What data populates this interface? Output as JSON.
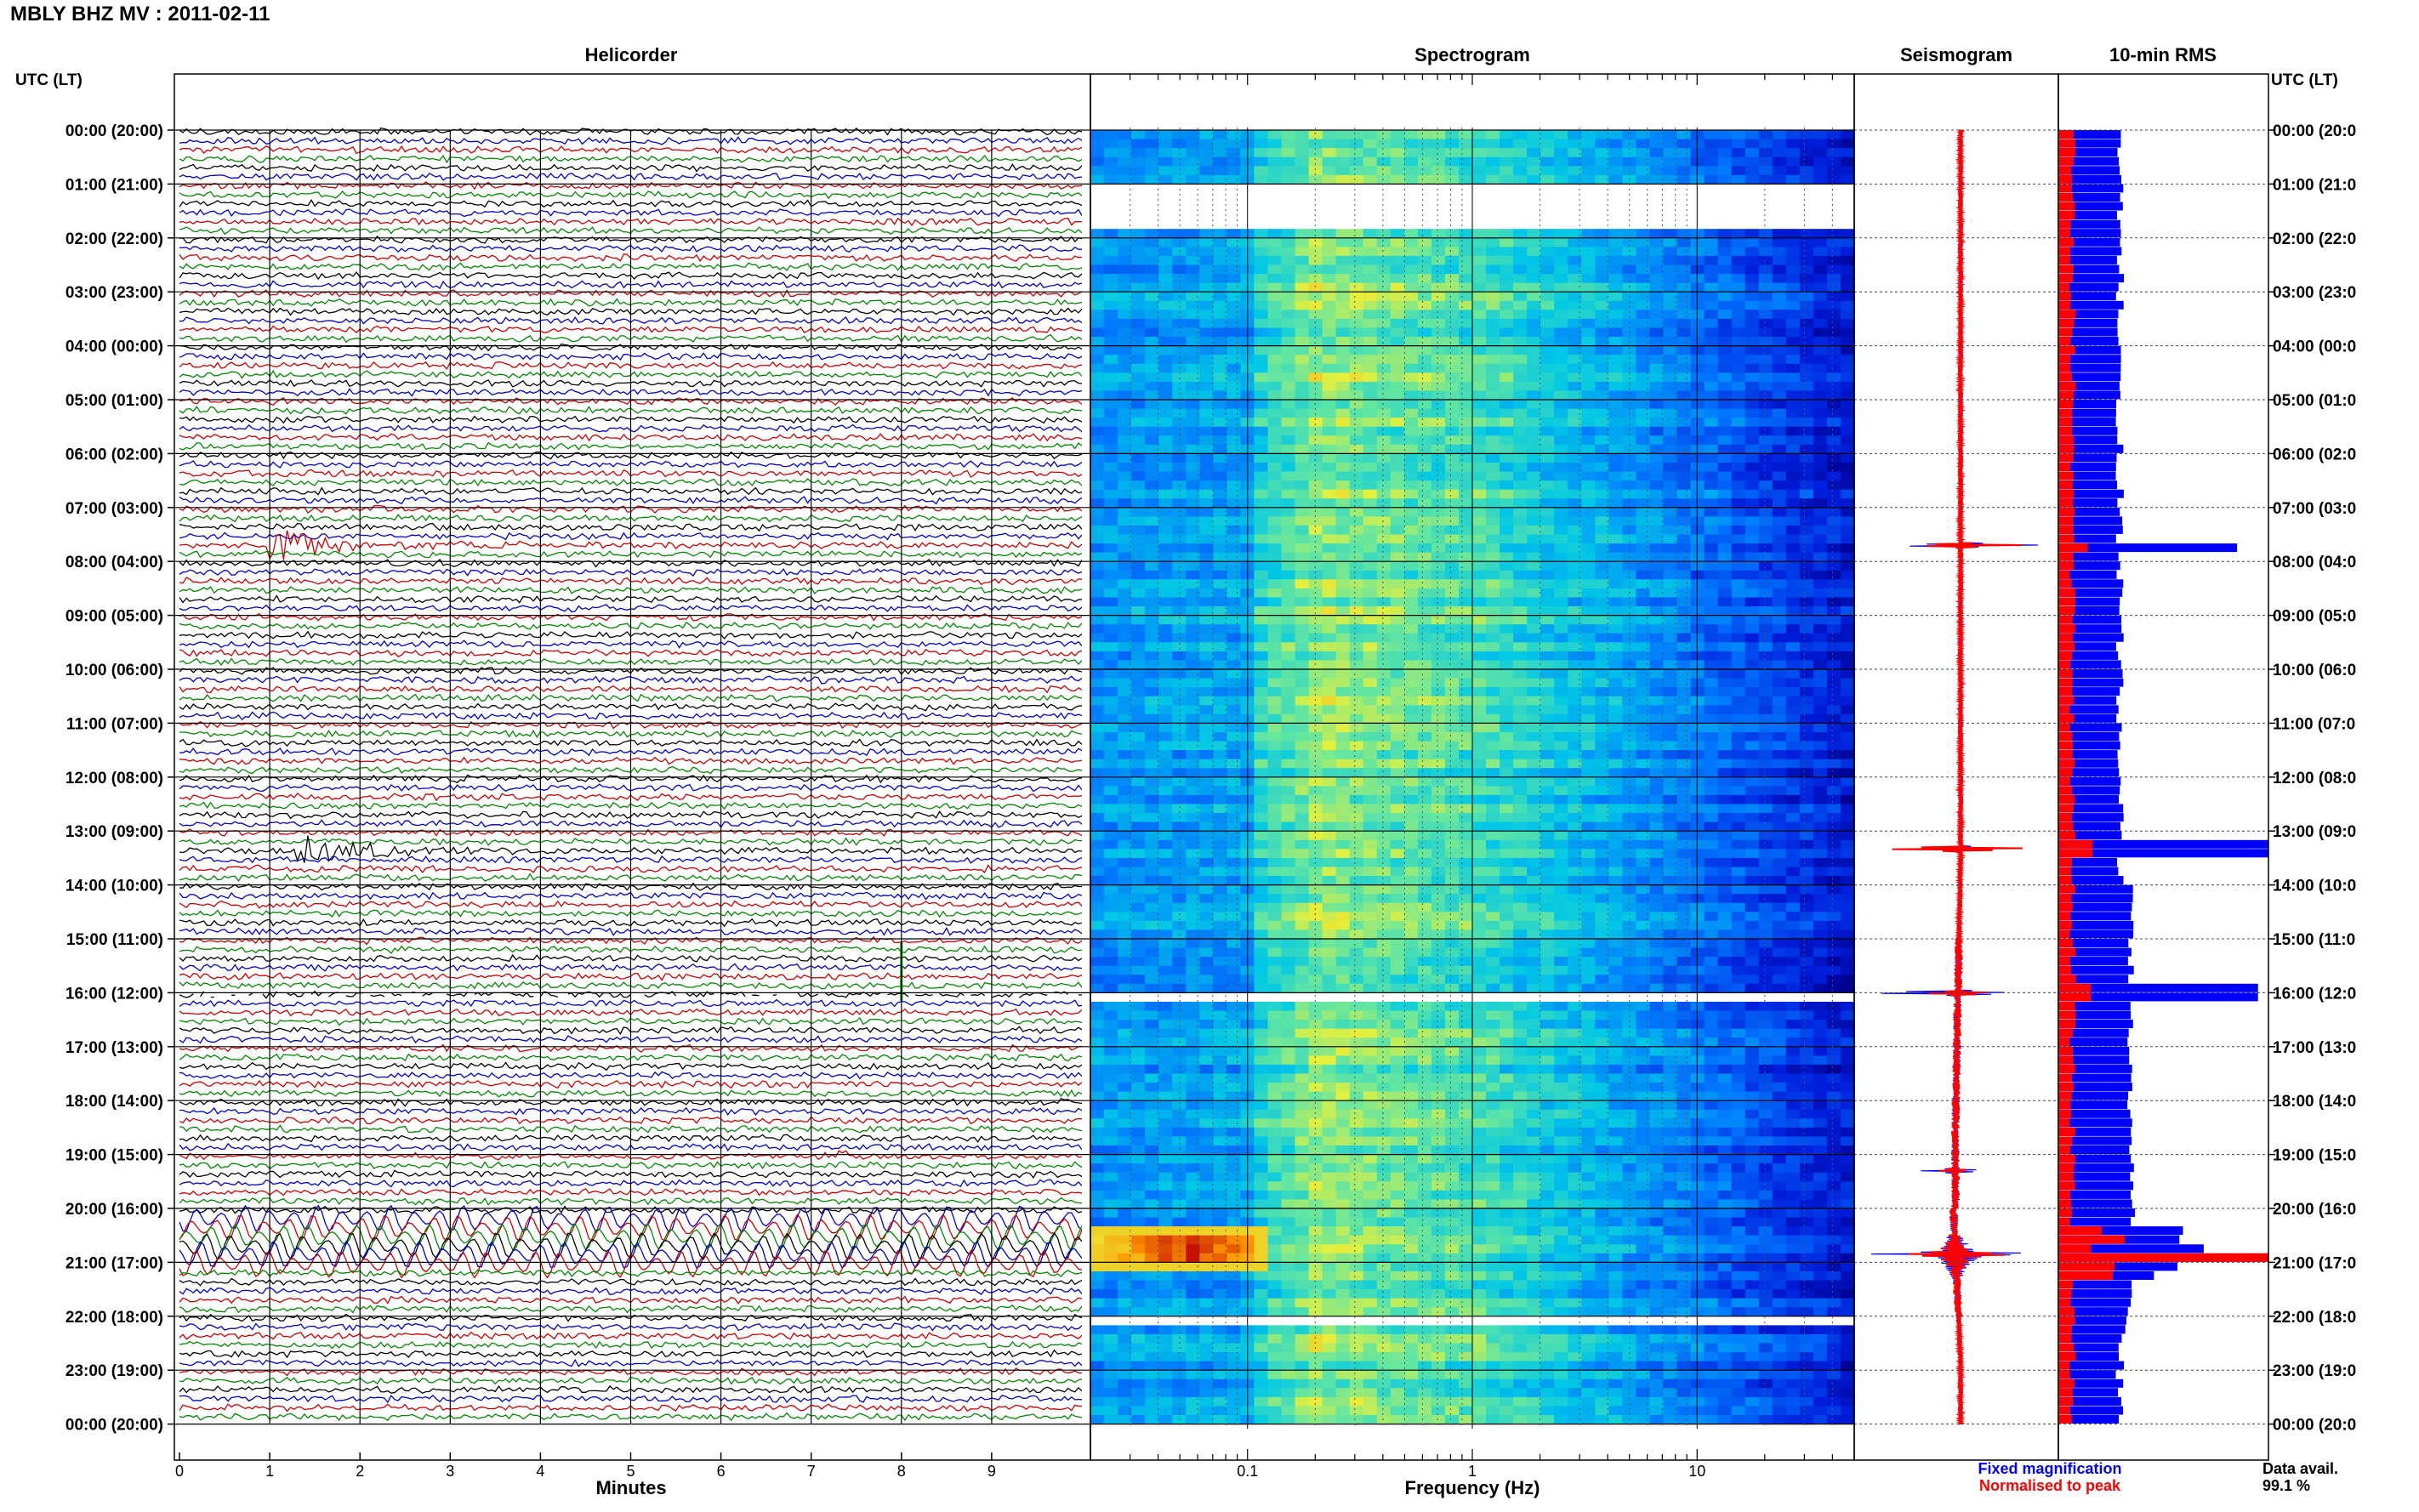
{
  "header": {
    "station_title": "MBLY BHZ MV : 2011-02-11"
  },
  "panels": {
    "helicorder": "Helicorder",
    "spectrogram": "Spectrogram",
    "seismogram": "Seismogram",
    "rms": "10-min RMS"
  },
  "axis": {
    "left_header": "UTC (LT)",
    "right_header": "UTC (LT)",
    "minutes_label": "Minutes",
    "frequency_label": "Frequency (Hz)"
  },
  "legend": {
    "fixed": "Fixed magnification",
    "normalised": "Normalised to peak",
    "fixed_color": "#0000ff",
    "normalised_color": "#ff0000"
  },
  "data_avail": {
    "label": "Data avail.",
    "value": "99.1 %"
  },
  "chart_data": [
    {
      "type": "line",
      "title": "Helicorder",
      "xlabel": "Minutes",
      "xlim": [
        0,
        10
      ],
      "x_ticks": [
        "0",
        "1",
        "2",
        "3",
        "4",
        "5",
        "6",
        "7",
        "8",
        "9"
      ],
      "row_interval_minutes": 10,
      "trace_colors": [
        "#000000",
        "#0000cc",
        "#cc0000",
        "#008800"
      ],
      "time_labels_left": [
        "00:00 (20:00)",
        "01:00 (21:00)",
        "02:00 (22:00)",
        "03:00 (23:00)",
        "04:00 (00:00)",
        "05:00 (01:00)",
        "06:00 (02:00)",
        "07:00 (03:00)",
        "08:00 (04:00)",
        "09:00 (05:00)",
        "10:00 (06:00)",
        "11:00 (07:00)",
        "12:00 (08:00)",
        "13:00 (09:00)",
        "14:00 (10:00)",
        "15:00 (11:00)",
        "16:00 (12:00)",
        "17:00 (13:00)",
        "18:00 (14:00)",
        "19:00 (15:00)",
        "20:00 (16:00)",
        "21:00 (17:00)",
        "22:00 (18:00)",
        "23:00 (19:00)",
        "00:00 (20:00)"
      ],
      "time_labels_right": [
        "00:00 (20:0",
        "01:00 (21:0",
        "02:00 (22:0",
        "03:00 (23:0",
        "04:00 (00:0",
        "05:00 (01:0",
        "06:00 (02:0",
        "07:00 (03:0",
        "08:00 (04:0",
        "09:00 (05:0",
        "10:00 (06:0",
        "11:00 (07:0",
        "12:00 (08:0",
        "13:00 (09:0",
        "14:00 (10:0",
        "15:00 (11:0",
        "16:00 (12:0",
        "17:00 (13:0",
        "18:00 (14:0",
        "19:00 (15:0",
        "20:00 (16:0",
        "21:00 (17:0",
        "22:00 (18:0",
        "23:00 (19:0",
        "00:00 (20:0"
      ],
      "events": [
        {
          "time": "07:40",
          "minute": 1.0,
          "color": "#0000cc"
        },
        {
          "time": "13:20",
          "minute": 1.3,
          "color": "#cc0000"
        },
        {
          "time": "15:50",
          "minute": 8.0,
          "color": "#008800"
        },
        {
          "time": "19:00",
          "minute": 7.3,
          "color": "#008800"
        },
        {
          "time": "20:10-21:00",
          "minute": 0,
          "color": "#000000"
        }
      ]
    },
    {
      "type": "heatmap",
      "title": "Spectrogram",
      "xlabel": "Frequency (Hz)",
      "x_scale": "log",
      "xlim": [
        0.02,
        50
      ],
      "x_ticks": [
        "0.1",
        "1",
        "10"
      ],
      "gaps": [
        "01:00-01:40",
        "15:55-16:05",
        "22:00"
      ],
      "hotspot": {
        "time": "20:30-21:00",
        "frequency_range": [
          0.03,
          0.1
        ]
      }
    },
    {
      "type": "line",
      "title": "Seismogram",
      "series": [
        {
          "name": "Fixed magnification",
          "color": "#0000ff"
        },
        {
          "name": "Normalised to peak",
          "color": "#ff0000"
        }
      ],
      "spikes": [
        "07:40",
        "13:20",
        "16:00",
        "19:15",
        "20:50"
      ]
    },
    {
      "type": "bar",
      "title": "10-min RMS",
      "orientation": "horizontal",
      "bins_per_hour": 6,
      "peaks": [
        {
          "time": "07:40",
          "relative": 0.85
        },
        {
          "time": "13:20",
          "relative": 1.0
        },
        {
          "time": "16:00",
          "relative": 0.95
        },
        {
          "time": "20:50",
          "relative": 1.0
        }
      ]
    }
  ]
}
